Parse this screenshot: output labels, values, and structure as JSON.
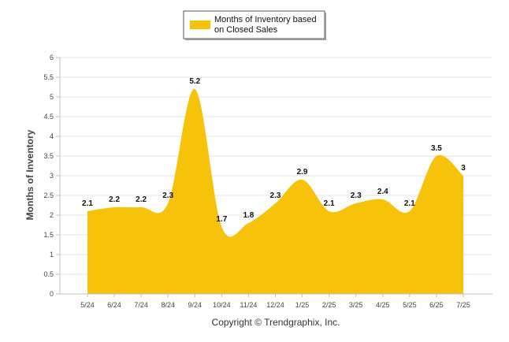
{
  "chart_data": {
    "type": "area",
    "categories": [
      "5/24",
      "6/24",
      "7/24",
      "8/24",
      "9/24",
      "10/24",
      "11/24",
      "12/24",
      "1/25",
      "2/25",
      "3/25",
      "4/25",
      "5/25",
      "6/25",
      "7/25"
    ],
    "series": [
      {
        "name": "Months of Inventory based on Closed Sales",
        "legend_lines": [
          "Months of Inventory based",
          "on Closed Sales"
        ],
        "values": [
          2.1,
          2.2,
          2.2,
          2.3,
          5.2,
          1.7,
          1.8,
          2.3,
          2.9,
          2.1,
          2.3,
          2.4,
          2.1,
          3.5,
          3
        ],
        "color": "#f7c20a"
      }
    ],
    "ylabel": "Months of Inventory",
    "xlabel": "",
    "ylim": [
      0,
      6
    ],
    "yticks": [
      "0",
      "0.5",
      "1",
      "1.5",
      "2",
      "2.5",
      "3",
      "3.5",
      "4",
      "4.5",
      "5",
      "5.5",
      "6"
    ],
    "grid": true,
    "legend_position": "top-center",
    "footer": "Copyright © Trendgraphix, Inc.",
    "grid_color": "#e6e6e6",
    "axis_color": "#c0c0c0"
  }
}
